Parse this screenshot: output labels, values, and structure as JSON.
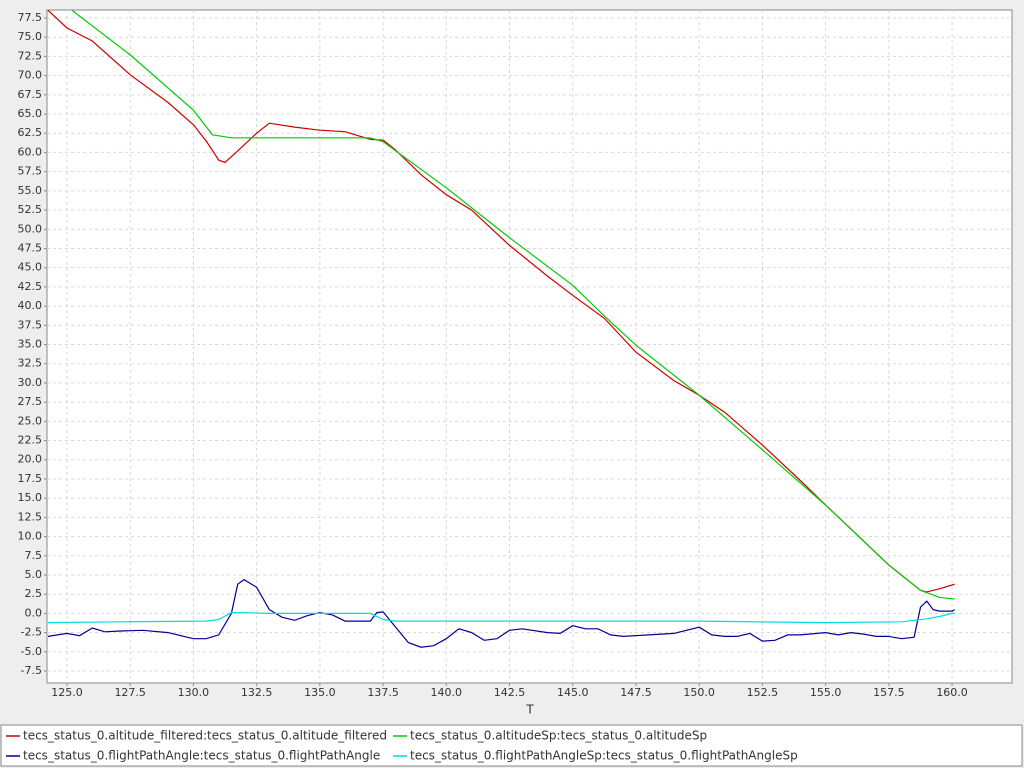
{
  "chart_data": {
    "type": "line",
    "x_label": "T",
    "xlim": [
      124.21,
      162.37
    ],
    "ylim": [
      -9.06,
      78.54
    ],
    "grid": true,
    "xticks": [
      {
        "value": 125,
        "label": "125.0"
      },
      127.5,
      {
        "value": 130,
        "label": "130.0"
      },
      132.5,
      {
        "value": 135,
        "label": "135.0"
      },
      137.5,
      {
        "value": 140,
        "label": "140.0"
      },
      142.5,
      {
        "value": 145,
        "label": "145.0"
      },
      147.5,
      {
        "value": 150,
        "label": "150.0"
      },
      152.5,
      {
        "value": 155,
        "label": "155.0"
      },
      157.5,
      {
        "value": 160,
        "label": "160.0"
      }
    ],
    "yticks": [
      -7.5,
      {
        "value": -5,
        "label": "-5.0"
      },
      -2.5,
      {
        "value": 0,
        "label": "0.0"
      },
      2.5,
      {
        "value": 5,
        "label": "5.0"
      },
      7.5,
      {
        "value": 10,
        "label": "10.0"
      },
      12.5,
      {
        "value": 15,
        "label": "15.0"
      },
      17.5,
      {
        "value": 20,
        "label": "20.0"
      },
      22.5,
      {
        "value": 25,
        "label": "25.0"
      },
      27.5,
      {
        "value": 30,
        "label": "30.0"
      },
      32.5,
      {
        "value": 35,
        "label": "35.0"
      },
      37.5,
      {
        "value": 40,
        "label": "40.0"
      },
      42.5,
      {
        "value": 45,
        "label": "45.0"
      },
      47.5,
      {
        "value": 50,
        "label": "50.0"
      },
      52.5,
      {
        "value": 55,
        "label": "55.0"
      },
      57.5,
      {
        "value": 60,
        "label": "60.0"
      },
      62.5,
      {
        "value": 65,
        "label": "65.0"
      },
      67.5,
      {
        "value": 70,
        "label": "70.0"
      },
      72.5,
      {
        "value": 75,
        "label": "75.0"
      },
      77.5
    ],
    "series": [
      {
        "name": "tecs_status_0.altitude_filtered:tecs_status_0.altitude_filtered",
        "color": "#cc0000",
        "x": [
          124.25,
          125,
          126,
          127.5,
          129,
          130,
          130.5,
          131,
          131.25,
          131.75,
          132.5,
          133,
          134,
          135,
          136,
          137,
          137.5,
          138,
          139,
          140,
          141,
          142.5,
          144,
          145,
          146.25,
          147.5,
          149,
          150,
          151,
          152.5,
          154,
          155,
          156,
          157.5,
          158.75,
          159,
          159.5,
          160,
          160.1
        ],
        "values": [
          78.5,
          76.2,
          74.5,
          70.1,
          66.5,
          63.6,
          61.5,
          59.0,
          58.7,
          60.2,
          62.5,
          63.8,
          63.3,
          62.9,
          62.7,
          61.7,
          61.6,
          60.3,
          57.1,
          54.5,
          52.5,
          47.9,
          43.9,
          41.4,
          38.4,
          34.0,
          30.3,
          28.4,
          26.2,
          21.9,
          17.3,
          14.1,
          11.0,
          6.3,
          3.0,
          2.8,
          3.2,
          3.7,
          3.8
        ]
      },
      {
        "name": "tecs_status_0.altitudeSp:tecs_status_0.altitudeSp",
        "color": "#00cc00",
        "x": [
          125.2,
          127.5,
          130,
          130.75,
          131.5,
          133,
          135,
          137,
          137.5,
          138.75,
          140,
          142.5,
          145,
          146.25,
          147.5,
          150,
          152.5,
          155,
          157.5,
          158.75,
          159.5,
          160,
          160.1
        ],
        "values": [
          78.5,
          72.7,
          65.5,
          62.3,
          61.9,
          61.9,
          61.9,
          61.9,
          61.4,
          58.4,
          55.4,
          48.9,
          42.7,
          38.7,
          34.9,
          28.4,
          21.3,
          14.1,
          6.3,
          3.0,
          2.1,
          1.9,
          1.9
        ]
      },
      {
        "name": "tecs_status_0.flightPathAngle:tecs_status_0.flightPathAngle",
        "color": "#000099",
        "x": [
          124.25,
          125,
          125.5,
          126,
          126.5,
          127,
          128,
          129,
          130,
          130.5,
          131,
          131.5,
          131.75,
          132,
          132.5,
          133,
          133.5,
          134,
          134.5,
          135,
          135.5,
          136,
          136.5,
          137,
          137.25,
          137.5,
          138,
          138.5,
          139,
          139.5,
          140,
          140.5,
          141,
          141.5,
          142,
          142.5,
          143,
          144,
          144.5,
          145,
          145.5,
          146,
          146.5,
          147,
          148,
          149,
          150,
          150.5,
          151,
          151.5,
          152,
          152.5,
          153,
          153.5,
          154,
          155,
          155.5,
          156,
          156.5,
          157,
          157.5,
          158,
          158.5,
          158.75,
          159,
          159.25,
          159.5,
          160,
          160.1
        ],
        "values": [
          -3.0,
          -2.6,
          -2.9,
          -1.9,
          -2.4,
          -2.3,
          -2.2,
          -2.5,
          -3.3,
          -3.3,
          -2.8,
          0.0,
          3.8,
          4.4,
          3.4,
          0.5,
          -0.5,
          -0.9,
          -0.3,
          0.1,
          -0.2,
          -1.0,
          -1.0,
          -1.0,
          0.1,
          0.2,
          -1.8,
          -3.8,
          -4.4,
          -4.2,
          -3.3,
          -2.0,
          -2.5,
          -3.5,
          -3.3,
          -2.2,
          -2.0,
          -2.5,
          -2.6,
          -1.6,
          -2.0,
          -2.0,
          -2.8,
          -3.0,
          -2.8,
          -2.6,
          -1.8,
          -2.8,
          -3.0,
          -3.0,
          -2.6,
          -3.6,
          -3.5,
          -2.8,
          -2.8,
          -2.5,
          -2.8,
          -2.5,
          -2.7,
          -3.0,
          -3.0,
          -3.3,
          -3.1,
          0.8,
          1.6,
          0.5,
          0.3,
          0.3,
          0.5
        ]
      },
      {
        "name": "tecs_status_0.flightPathAngleSp:tecs_status_0.flightPathAngleSp",
        "color": "#00dddd",
        "x": [
          124.25,
          127,
          130.5,
          131,
          131.5,
          132,
          133,
          134,
          137,
          137.5,
          138,
          150,
          155,
          158,
          159,
          159.5,
          160,
          160.1
        ],
        "values": [
          -1.2,
          -1.1,
          -1.0,
          -0.8,
          0.1,
          0.1,
          0.0,
          0.0,
          0.0,
          -0.8,
          -1.0,
          -1.0,
          -1.2,
          -1.1,
          -0.7,
          -0.4,
          0.0,
          0.0
        ]
      }
    ]
  }
}
